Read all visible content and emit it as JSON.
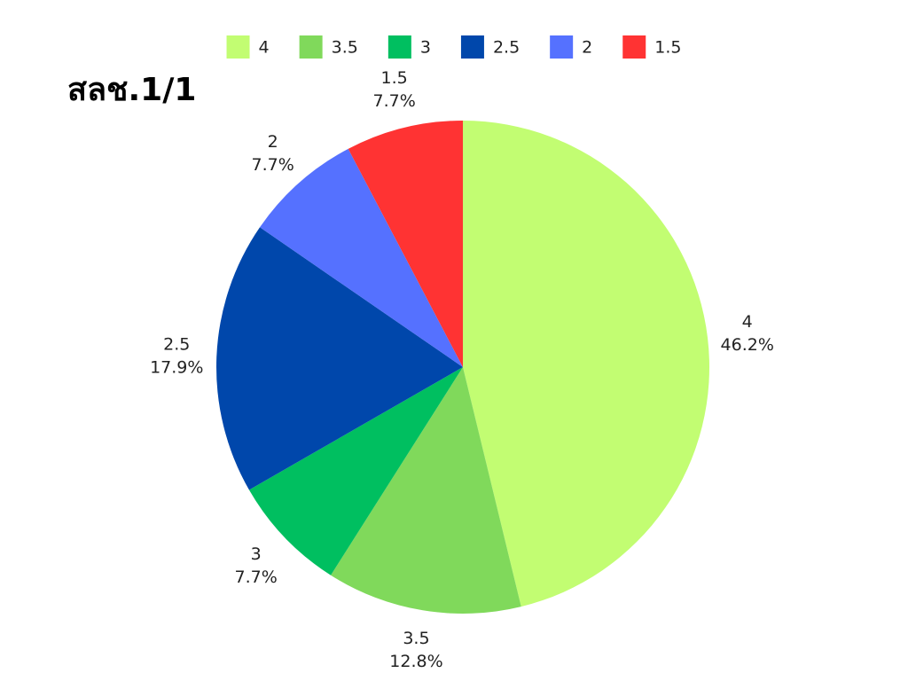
{
  "chart_data": {
    "type": "pie",
    "title": "สลช.1/1",
    "categories": [
      "4",
      "3.5",
      "3",
      "2.5",
      "2",
      "1.5"
    ],
    "values": [
      46.2,
      12.8,
      7.7,
      17.9,
      7.7,
      7.7
    ],
    "value_labels": [
      "46.2%",
      "12.8%",
      "7.7%",
      "17.9%",
      "7.7%",
      "7.7%"
    ],
    "colors": [
      "#c2fd72",
      "#80d95b",
      "#00bf60",
      "#0047ab",
      "#5571ff",
      "#ff3333"
    ],
    "legend": "top"
  }
}
